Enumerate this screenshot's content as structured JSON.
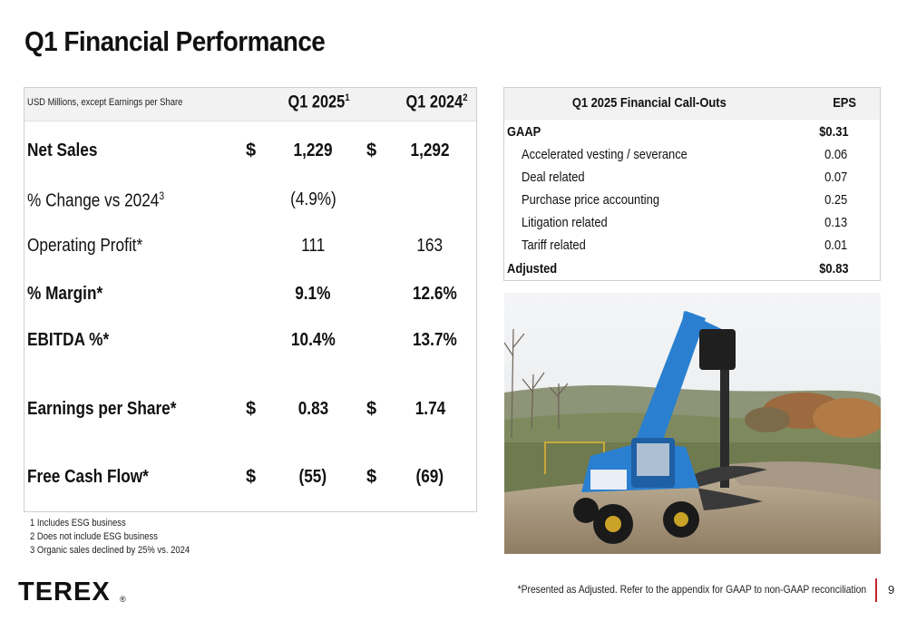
{
  "title": "Q1 Financial Performance",
  "financial_table": {
    "caption": "USD Millions, except Earnings per Share",
    "col1": "Q1 2025",
    "col1_sup": "1",
    "col2": "Q1 2024",
    "col2_sup": "2",
    "rows": [
      {
        "label": "Net Sales",
        "label_sup": "",
        "cur1": "$",
        "v1": "1,229",
        "cur2": "$",
        "v2": "1,292"
      },
      {
        "label": "% Change vs 2024",
        "label_sup": "3",
        "cur1": "",
        "v1": "(4.9%)",
        "cur2": "",
        "v2": ""
      },
      {
        "label": "Operating Profit*",
        "label_sup": "",
        "cur1": "",
        "v1": "111",
        "cur2": "",
        "v2": "163"
      },
      {
        "label": "% Margin*",
        "label_sup": "",
        "cur1": "",
        "v1": "9.1%",
        "cur2": "",
        "v2": "12.6%"
      },
      {
        "label": "EBITDA %*",
        "label_sup": "",
        "cur1": "",
        "v1": "10.4%",
        "cur2": "",
        "v2": "13.7%"
      },
      {
        "label": "Earnings per Share*",
        "label_sup": "",
        "cur1": "$",
        "v1": "0.83",
        "cur2": "$",
        "v2": "1.74"
      },
      {
        "label": "Free Cash Flow*",
        "label_sup": "",
        "cur1": "$",
        "v1": "(55)",
        "cur2": "$",
        "v2": "(69)"
      }
    ]
  },
  "footnotes": [
    "1 Includes ESG business",
    "2 Does not include ESG business",
    "3 Organic sales declined by 25% vs. 2024"
  ],
  "callout_table": {
    "header": "Q1 2025 Financial Call-Outs",
    "header_eps": "EPS",
    "rows": [
      {
        "label": "GAAP",
        "value": "$0.31"
      },
      {
        "label": "Accelerated vesting / severance",
        "value": "0.06"
      },
      {
        "label": "Deal related",
        "value": "0.07"
      },
      {
        "label": "Purchase price accounting",
        "value": "0.25"
      },
      {
        "label": "Litigation related",
        "value": "0.13"
      },
      {
        "label": "Tariff related",
        "value": "0.01"
      },
      {
        "label": "Adjusted",
        "value": "$0.83"
      }
    ]
  },
  "footer": {
    "logo_text": "TEREX",
    "logo_mark": "®",
    "disclaimer": "*Presented as Adjusted. Refer to the appendix for GAAP to non-GAAP reconciliation",
    "page_number": "9"
  },
  "colors": {
    "accent": "#c0272d",
    "header_bg": "#f2f2f2",
    "machine_blue": "#2a7fd0"
  }
}
